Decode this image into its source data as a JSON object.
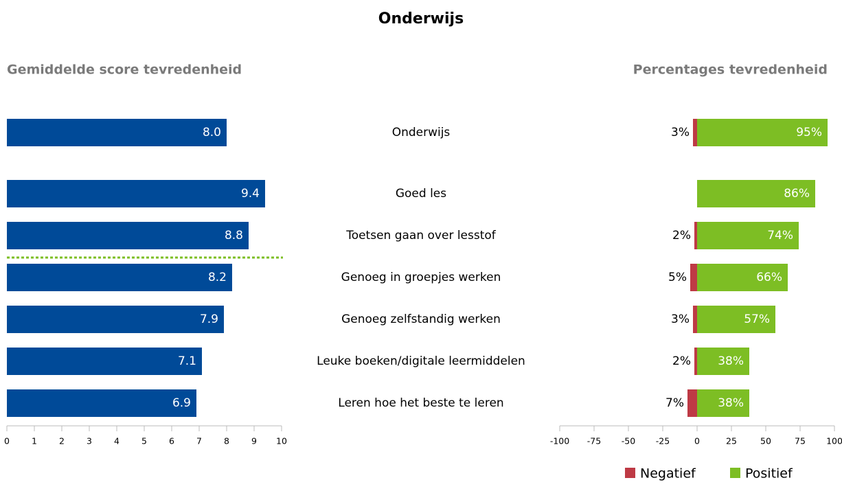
{
  "title": "Onderwijs",
  "chart_data": [
    {
      "type": "bar",
      "orientation": "horizontal",
      "title": "Gemiddelde score tevredenheid",
      "categories": [
        "Onderwijs",
        "Goed les",
        "Toetsen gaan over lesstof",
        "Genoeg in groepjes werken",
        "Genoeg zelfstandig werken",
        "Leuke boeken/digitale leermiddelen",
        "Leren hoe het beste te leren"
      ],
      "values": [
        8.0,
        9.4,
        8.8,
        8.2,
        7.9,
        7.1,
        6.9
      ],
      "value_labels": [
        "8.0",
        "9.4",
        "8.8",
        "8.2",
        "7.9",
        "7.1",
        "6.9"
      ],
      "color": "#004a98",
      "xlim": [
        0,
        10
      ],
      "xticks": [
        0,
        1,
        2,
        3,
        4,
        5,
        6,
        7,
        8,
        9,
        10
      ]
    },
    {
      "type": "diverging_bar",
      "orientation": "horizontal",
      "title": "Percentages tevredenheid",
      "series": [
        {
          "name": "Negatief",
          "color": "#be3a45",
          "values": [
            -3,
            null,
            -2,
            -5,
            -3,
            -2,
            -7
          ],
          "value_labels": [
            "3%",
            null,
            "2%",
            "5%",
            "3%",
            "2%",
            "7%"
          ]
        },
        {
          "name": "Positief",
          "color": "#7dbe24",
          "values": [
            95,
            86,
            74,
            66,
            57,
            38,
            38
          ],
          "value_labels": [
            "95%",
            "86%",
            "74%",
            "66%",
            "57%",
            "38%",
            "38%"
          ]
        }
      ],
      "xlim": [
        -100,
        100
      ],
      "xticks": [
        -100,
        -75,
        -50,
        -25,
        0,
        25,
        50,
        75,
        100
      ]
    }
  ]
}
